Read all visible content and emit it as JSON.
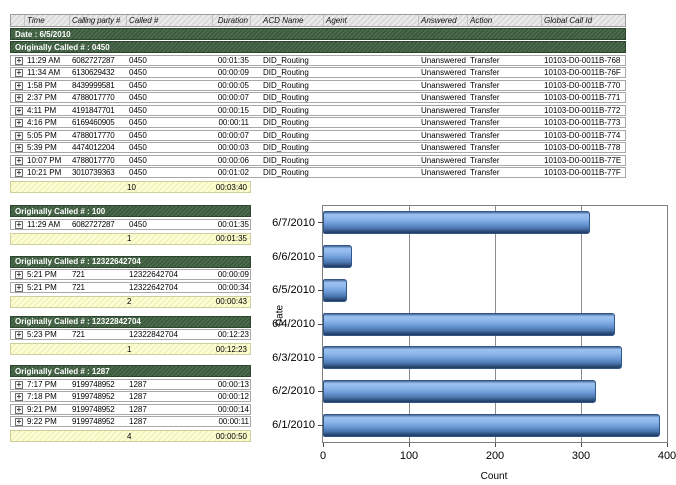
{
  "icons": {
    "expand_glyph": "+"
  },
  "table": {
    "column_headers": [
      "",
      "Time",
      "Calling party #",
      "Called #",
      "Duration",
      "ACD Name",
      "Agent",
      "Answered",
      "Action",
      "Global Call Id"
    ],
    "date_group": "Date : 6/5/2010",
    "sections": [
      {
        "title": "Originally Called # : 0450",
        "rows": [
          {
            "time": "11:29 AM",
            "calling": "6082727287",
            "called": "0450",
            "duration": "00:01:35",
            "acd": "DID_Routing",
            "agent": "",
            "answered": "Unanswered",
            "action": "Transfer",
            "global_id": "10103-D0-0011B-768"
          },
          {
            "time": "11:34 AM",
            "calling": "6130629432",
            "called": "0450",
            "duration": "00:00:09",
            "acd": "DID_Routing",
            "agent": "",
            "answered": "Unanswered",
            "action": "Transfer",
            "global_id": "10103-D0-0011B-76F"
          },
          {
            "time": "1:58 PM",
            "calling": "8439999581",
            "called": "0450",
            "duration": "00:00:05",
            "acd": "DID_Routing",
            "agent": "",
            "answered": "Unanswered",
            "action": "Transfer",
            "global_id": "10103-D0-0011B-770"
          },
          {
            "time": "2:37 PM",
            "calling": "4788017770",
            "called": "0450",
            "duration": "00:00:07",
            "acd": "DID_Routing",
            "agent": "",
            "answered": "Unanswered",
            "action": "Transfer",
            "global_id": "10103-D0-0011B-771"
          },
          {
            "time": "4:11 PM",
            "calling": "4191847701",
            "called": "0450",
            "duration": "00:00:15",
            "acd": "DID_Routing",
            "agent": "",
            "answered": "Unanswered",
            "action": "Transfer",
            "global_id": "10103-D0-0011B-772"
          },
          {
            "time": "4:16 PM",
            "calling": "6169460905",
            "called": "0450",
            "duration": "00:00:11",
            "acd": "DID_Routing",
            "agent": "",
            "answered": "Unanswered",
            "action": "Transfer",
            "global_id": "10103-D0-0011B-773"
          },
          {
            "time": "5:05 PM",
            "calling": "4788017770",
            "called": "0450",
            "duration": "00:00:07",
            "acd": "DID_Routing",
            "agent": "",
            "answered": "Unanswered",
            "action": "Transfer",
            "global_id": "10103-D0-0011B-774"
          },
          {
            "time": "5:39 PM",
            "calling": "4474012204",
            "called": "0450",
            "duration": "00:00:03",
            "acd": "DID_Routing",
            "agent": "",
            "answered": "Unanswered",
            "action": "Transfer",
            "global_id": "10103-D0-0011B-778"
          },
          {
            "time": "10:07 PM",
            "calling": "4788017770",
            "called": "0450",
            "duration": "00:00:06",
            "acd": "DID_Routing",
            "agent": "",
            "answered": "Unanswered",
            "action": "Transfer",
            "global_id": "10103-D0-0011B-77E"
          },
          {
            "time": "10:21 PM",
            "calling": "3010739363",
            "called": "0450",
            "duration": "00:01:02",
            "acd": "DID_Routing",
            "agent": "",
            "answered": "Unanswered",
            "action": "Transfer",
            "global_id": "10103-D0-0011B-77F"
          }
        ],
        "summary": {
          "count": "10",
          "duration": "00:03:40"
        }
      },
      {
        "title": "Originally Called # : 100",
        "rows": [
          {
            "time": "11:29 AM",
            "calling": "6082727287",
            "called": "0450",
            "duration": "00:01:35"
          }
        ],
        "summary": {
          "count": "1",
          "duration": "00:01:35"
        }
      },
      {
        "title": "Originally Called # : 12322642704",
        "rows": [
          {
            "time": "5:21 PM",
            "calling": "721",
            "called": "12322642704",
            "duration": "00:00:09"
          },
          {
            "time": "5:21 PM",
            "calling": "721",
            "called": "12322642704",
            "duration": "00:00:34"
          }
        ],
        "summary": {
          "count": "2",
          "duration": "00:00:43"
        }
      },
      {
        "title": "Originally Called # : 12322842704",
        "rows": [
          {
            "time": "5:23 PM",
            "calling": "721",
            "called": "12322842704",
            "duration": "00:12:23"
          }
        ],
        "summary": {
          "count": "1",
          "duration": "00:12:23"
        }
      },
      {
        "title": "Originally Called # : 1287",
        "rows": [
          {
            "time": "7:17 PM",
            "calling": "9199748952",
            "called": "1287",
            "duration": "00:00:13"
          },
          {
            "time": "7:18 PM",
            "calling": "9199748952",
            "called": "1287",
            "duration": "00:00:12"
          },
          {
            "time": "9:21 PM",
            "calling": "9199748952",
            "called": "1287",
            "duration": "00:00:14"
          },
          {
            "time": "9:22 PM",
            "calling": "9199748952",
            "called": "1287",
            "duration": "00:00:11"
          }
        ],
        "summary": {
          "count": "4",
          "duration": "00:00:50"
        }
      }
    ]
  },
  "chart_data": {
    "type": "bar",
    "orientation": "horizontal",
    "categories": [
      "6/7/2010",
      "6/6/2010",
      "6/5/2010",
      "6/4/2010",
      "6/3/2010",
      "6/2/2010",
      "6/1/2010"
    ],
    "values": [
      310,
      34,
      28,
      340,
      348,
      318,
      392
    ],
    "title": "",
    "xlabel": "Count",
    "ylabel": "Date",
    "xlim": [
      0,
      400
    ],
    "xticks": [
      0,
      100,
      200,
      300,
      400
    ],
    "grid": true,
    "legend": false,
    "bar_color_top": "#9dc2f0",
    "bar_color_bottom": "#1f3a5e"
  },
  "colors": {
    "group_header_bg": "#3c5a3e",
    "summary_bg": "#ffffcc",
    "header_bg": "#e3e3e3",
    "grid_line": "#8c8c8c"
  }
}
